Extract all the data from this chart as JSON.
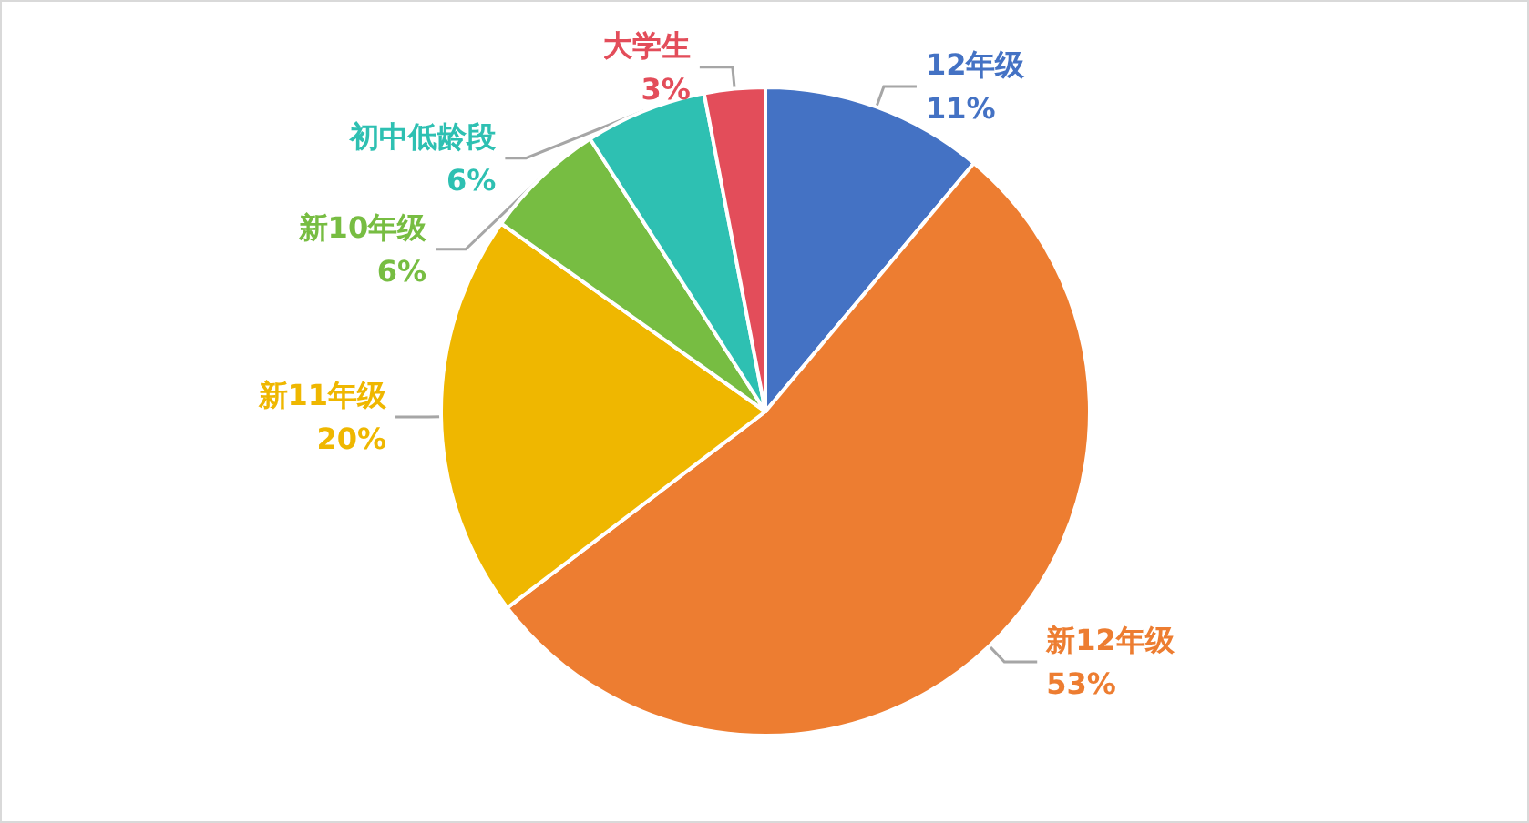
{
  "chart_data": {
    "type": "pie",
    "categories": [
      "12年级",
      "新12年级",
      "新11年级",
      "新10年级",
      "初中低龄段",
      "大学生"
    ],
    "values": [
      11,
      53,
      20,
      6,
      6,
      3
    ],
    "value_labels": [
      "11%",
      "53%",
      "20%",
      "6%",
      "6%",
      "3%"
    ],
    "colors": [
      "#4472c4",
      "#ed7d31",
      "#efb700",
      "#77bd42",
      "#2ec0b2",
      "#e34d5a"
    ],
    "legend": false
  }
}
